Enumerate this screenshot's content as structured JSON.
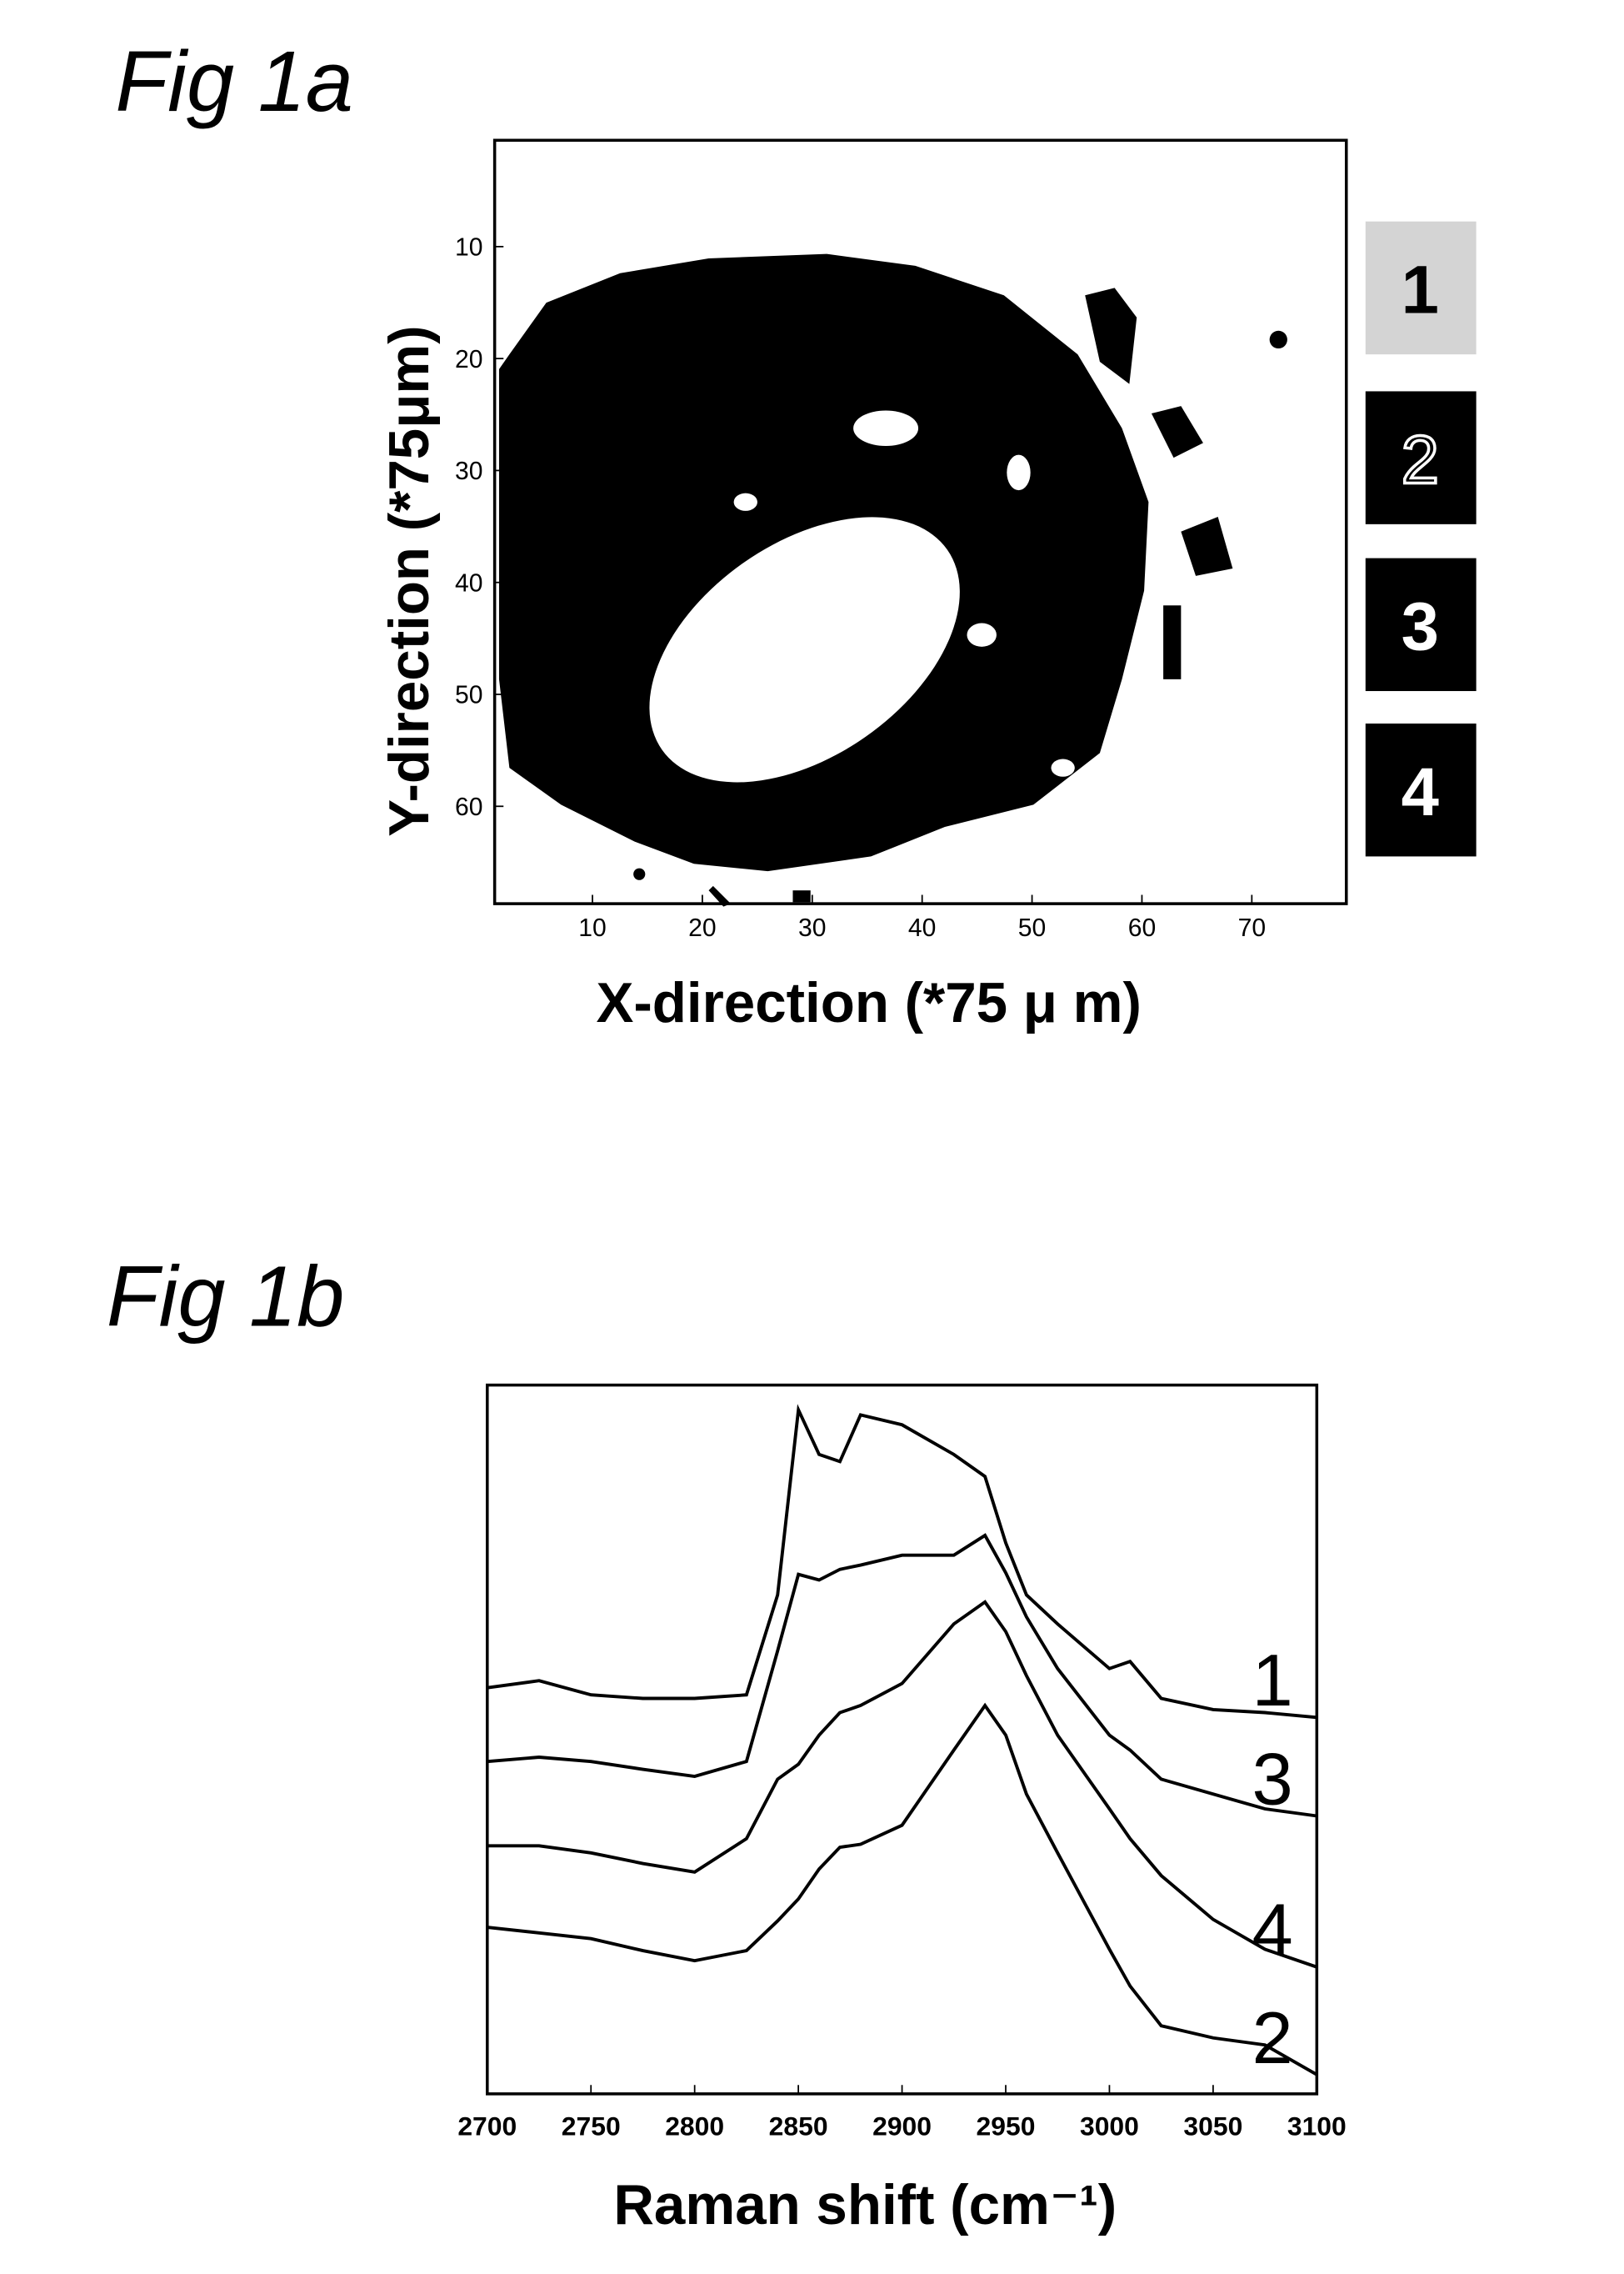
{
  "chart_data": [
    {
      "type": "map",
      "title": "Fig 1a",
      "xlabel": "X-direction (*75 μ m)",
      "ylabel": "Y-direction (*75μm)",
      "xlim": [
        1.1,
        78.6
      ],
      "ylim": [
        0.5,
        68.7
      ],
      "y_inverted": true,
      "xticks": [
        10,
        20,
        30,
        40,
        50,
        60,
        70
      ],
      "yticks": [
        10,
        20,
        30,
        40,
        50,
        60
      ],
      "legend": [
        {
          "label": "1",
          "color": "#d4d4d4"
        },
        {
          "label": "2",
          "color": "#000000"
        },
        {
          "label": "3",
          "color": "#000000"
        },
        {
          "label": "4",
          "color": "#000000"
        }
      ]
    },
    {
      "type": "line",
      "title": "Fig 1b",
      "xlabel": "Raman shift (cm⁻¹)",
      "xlim": [
        2700,
        3100
      ],
      "ylim": [
        0,
        100
      ],
      "xticks": [
        2700,
        2750,
        2800,
        2850,
        2900,
        2950,
        3000,
        3050,
        3100
      ],
      "x": [
        2700,
        2725,
        2750,
        2775,
        2800,
        2825,
        2840,
        2850,
        2860,
        2870,
        2880,
        2900,
        2925,
        2940,
        2950,
        2960,
        2975,
        3000,
        3010,
        3025,
        3050,
        3075,
        3100
      ],
      "series": [
        {
          "name": "1",
          "color": "#000000",
          "values": [
            57.3,
            58.3,
            56.3,
            55.8,
            55.8,
            56.3,
            70.4,
            96.5,
            90.2,
            89.2,
            95.8,
            94.4,
            90.2,
            87.1,
            77.7,
            70.4,
            66.3,
            60,
            61,
            55.8,
            54.2,
            53.8,
            53.1
          ]
        },
        {
          "name": "3",
          "color": "#000000",
          "values": [
            46.9,
            47.5,
            46.9,
            45.8,
            44.8,
            46.9,
            62.5,
            73.3,
            72.5,
            74,
            74.6,
            76,
            76,
            78.8,
            73.5,
            67.3,
            60,
            50.6,
            48.5,
            44.4,
            42.3,
            40.2,
            39.2
          ]
        },
        {
          "name": "4",
          "color": "#000000",
          "values": [
            35,
            35,
            34,
            32.5,
            31.3,
            36,
            44.4,
            46.5,
            50.6,
            53.8,
            54.8,
            57.9,
            66.3,
            69.4,
            65.2,
            59,
            50.6,
            40.2,
            36,
            30.8,
            24.6,
            20.4,
            17.9
          ]
        },
        {
          "name": "2",
          "color": "#000000",
          "values": [
            23.5,
            22.7,
            21.9,
            20.2,
            18.8,
            20.2,
            24.4,
            27.5,
            31.7,
            34.8,
            35.2,
            37.9,
            48.5,
            54.8,
            50.6,
            42.3,
            34,
            20.4,
            15.2,
            9.6,
            7.9,
            6.9,
            2.7
          ]
        }
      ]
    }
  ]
}
